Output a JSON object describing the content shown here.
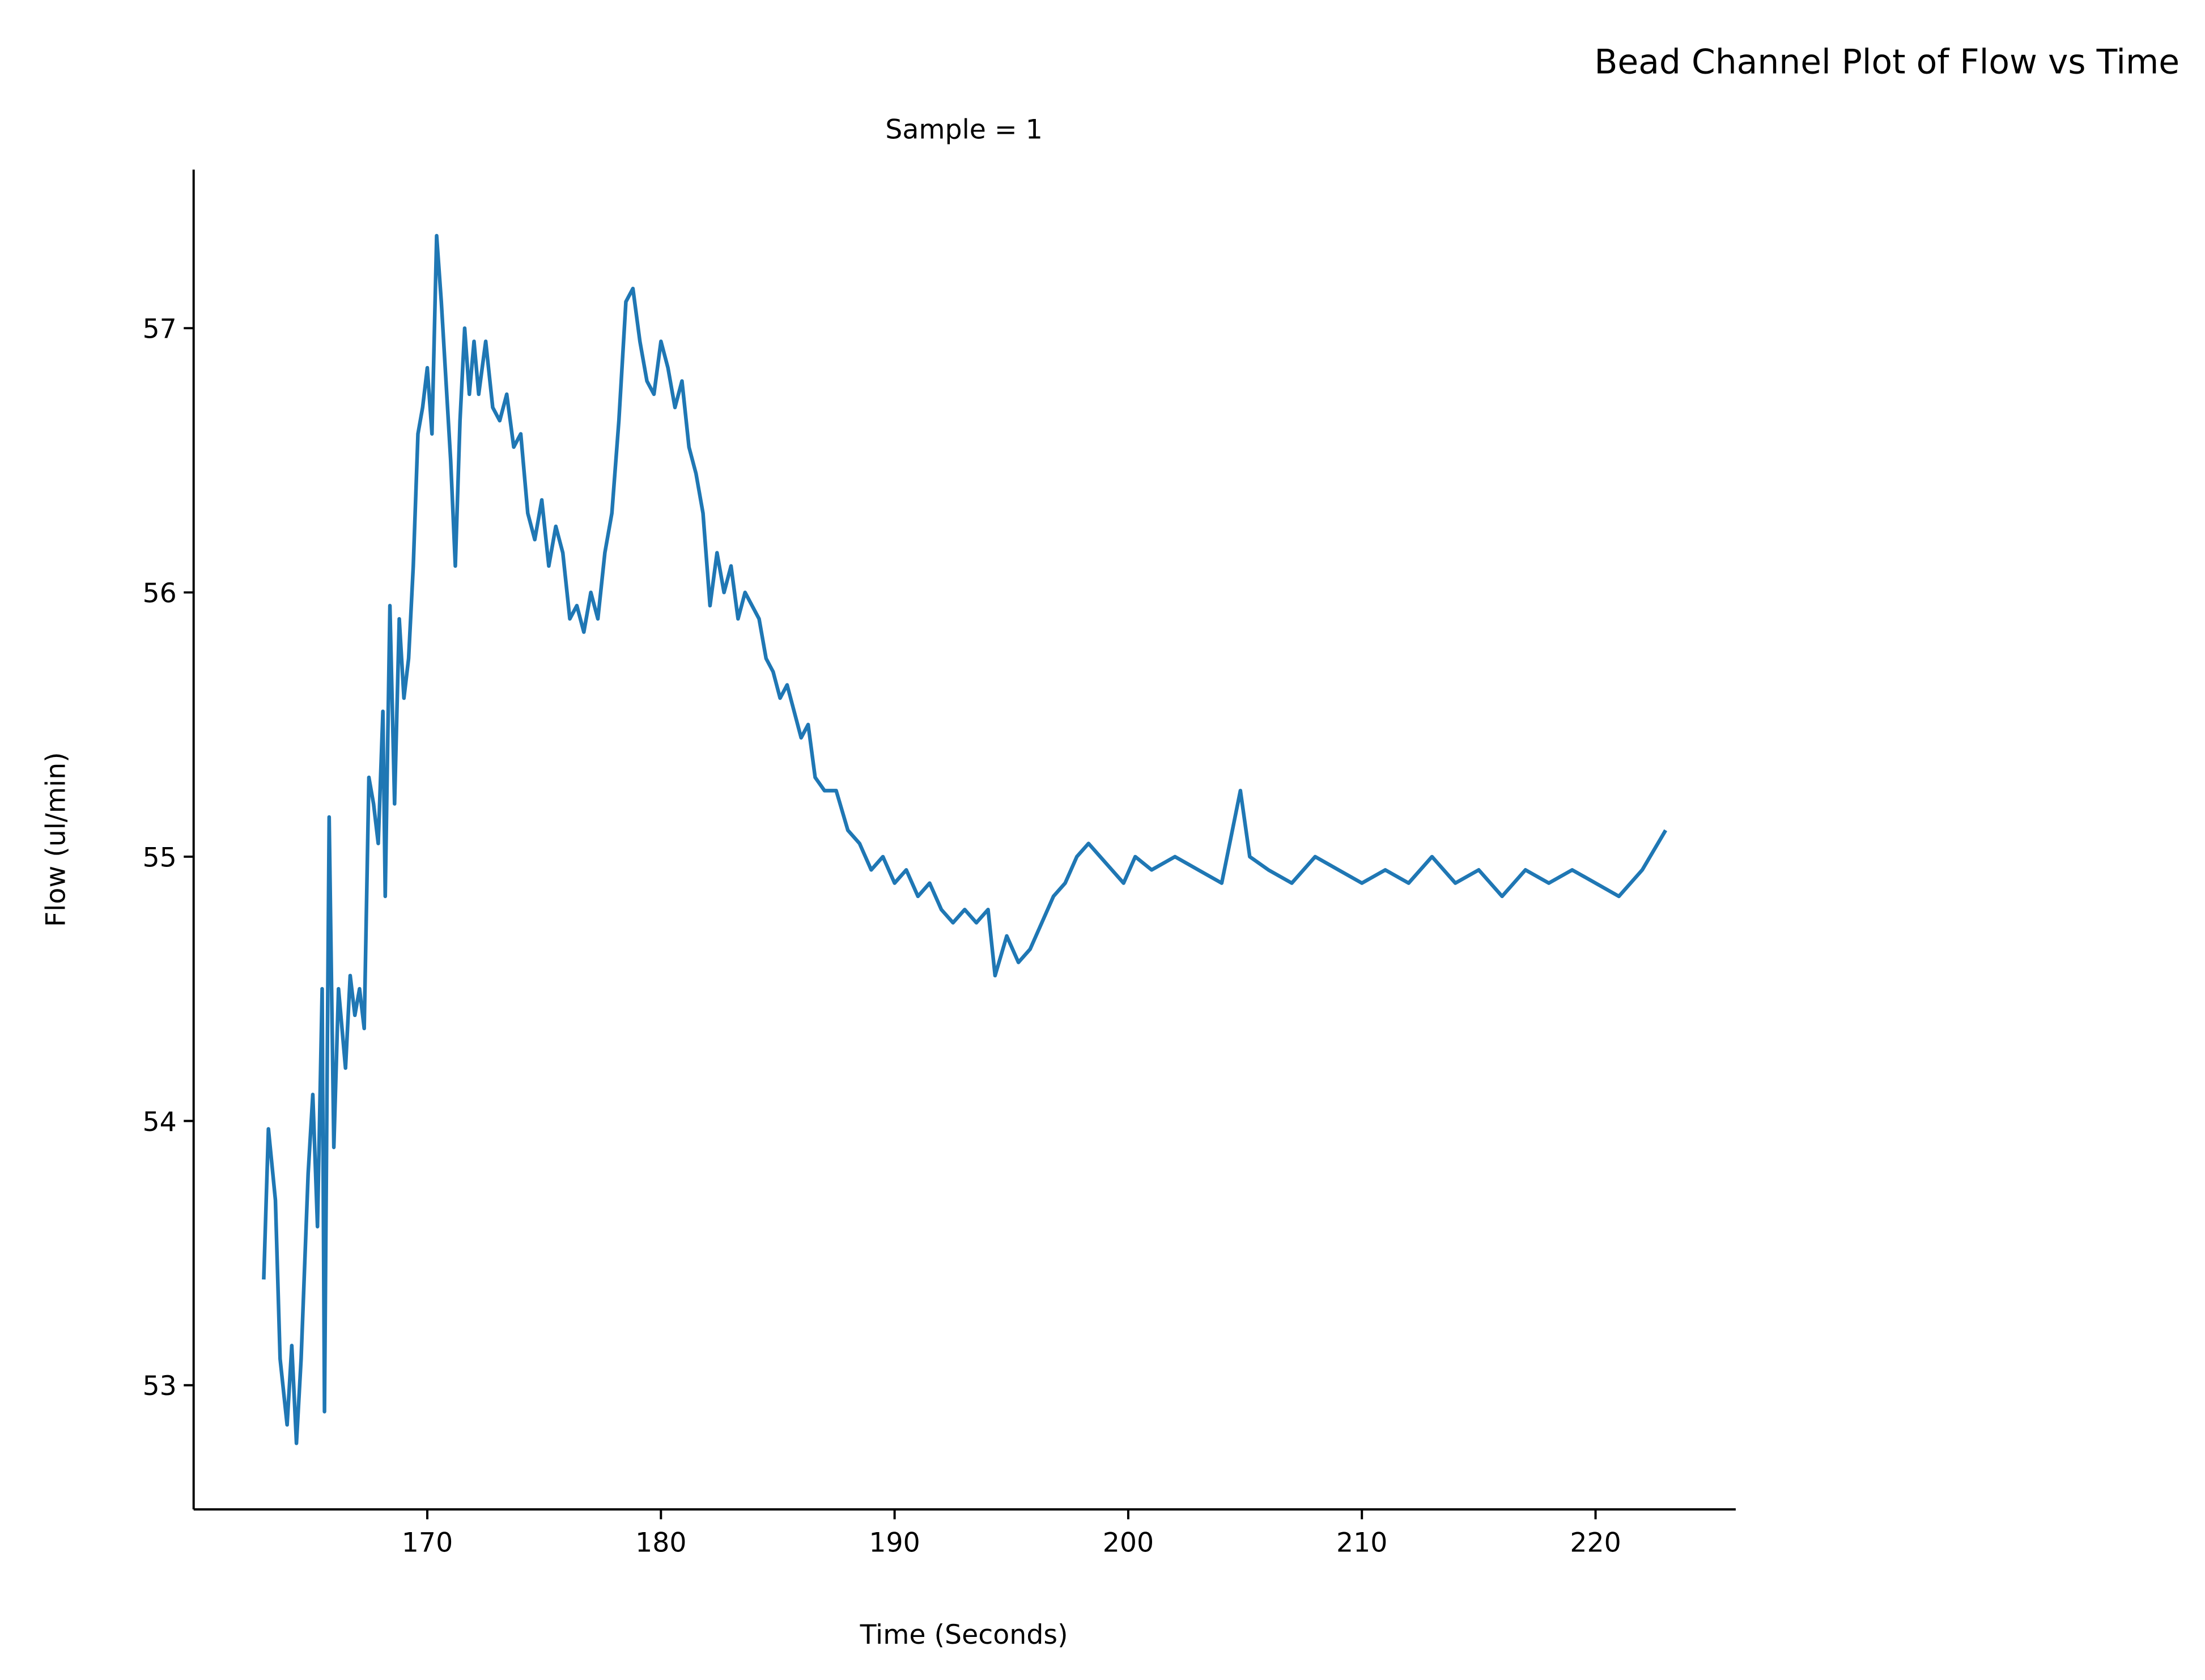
{
  "chart_data": {
    "type": "line",
    "title": "Bead Channel Plot of Flow vs Time",
    "subtitle": "Sample = 1",
    "x_label": "Time (Seconds)",
    "y_label": "Flow (ul/min)",
    "xlim": [
      160,
      226
    ],
    "xticks": [
      170,
      180,
      190,
      200,
      210,
      220
    ],
    "ylim": [
      52.53,
      57.6
    ],
    "yticks": [
      53,
      54,
      55,
      56,
      57
    ],
    "grid": false,
    "x": [
      163.0,
      163.2,
      163.5,
      163.7,
      164.0,
      164.2,
      164.4,
      164.6,
      164.9,
      165.1,
      165.3,
      165.5,
      165.6,
      165.8,
      166.0,
      166.2,
      166.5,
      166.7,
      166.9,
      167.1,
      167.3,
      167.5,
      167.7,
      167.9,
      168.1,
      168.2,
      168.4,
      168.6,
      168.8,
      169.0,
      169.2,
      169.4,
      169.6,
      169.8,
      170.0,
      170.2,
      170.4,
      170.6,
      170.8,
      171.0,
      171.2,
      171.4,
      171.6,
      171.8,
      172.0,
      172.2,
      172.5,
      172.8,
      173.1,
      173.4,
      173.7,
      174.0,
      174.3,
      174.6,
      174.9,
      175.2,
      175.5,
      175.8,
      176.1,
      176.4,
      176.7,
      177.0,
      177.3,
      177.6,
      177.9,
      178.2,
      178.5,
      178.8,
      179.1,
      179.4,
      179.7,
      180.0,
      180.3,
      180.6,
      180.9,
      181.2,
      181.5,
      181.8,
      182.1,
      182.4,
      182.7,
      183.0,
      183.3,
      183.6,
      183.9,
      184.2,
      184.5,
      184.8,
      185.1,
      185.4,
      185.7,
      186.0,
      186.3,
      186.6,
      187.0,
      187.5,
      188.0,
      188.5,
      189.0,
      189.5,
      190.0,
      190.5,
      191.0,
      191.5,
      192.0,
      192.5,
      193.0,
      193.5,
      194.0,
      194.3,
      194.8,
      195.3,
      195.8,
      196.3,
      196.8,
      197.3,
      197.8,
      198.3,
      198.8,
      199.3,
      199.8,
      200.3,
      201,
      202,
      203,
      204,
      204.8,
      205.2,
      206,
      207,
      208,
      209,
      210,
      211,
      212,
      213,
      214,
      215,
      216,
      217,
      218,
      219,
      220,
      221,
      222,
      223
    ],
    "series": [
      {
        "name": "Flow",
        "color": "#1f77b4",
        "values": [
          53.4,
          53.97,
          53.7,
          53.1,
          52.85,
          53.15,
          52.78,
          53.1,
          53.8,
          54.1,
          53.6,
          54.5,
          52.9,
          55.15,
          53.9,
          54.5,
          54.2,
          54.55,
          54.4,
          54.5,
          54.35,
          55.3,
          55.2,
          55.05,
          55.55,
          54.85,
          55.95,
          55.2,
          55.9,
          55.6,
          55.75,
          56.1,
          56.6,
          56.7,
          56.85,
          56.6,
          57.35,
          57.1,
          56.8,
          56.5,
          56.1,
          56.65,
          57.0,
          56.75,
          56.95,
          56.75,
          56.95,
          56.7,
          56.65,
          56.75,
          56.55,
          56.6,
          56.3,
          56.2,
          56.35,
          56.1,
          56.25,
          56.15,
          55.9,
          55.95,
          55.85,
          56.0,
          55.9,
          56.15,
          56.3,
          56.65,
          57.1,
          57.15,
          56.95,
          56.8,
          56.75,
          56.95,
          56.85,
          56.7,
          56.8,
          56.55,
          56.45,
          56.3,
          55.95,
          56.15,
          56.0,
          56.1,
          55.9,
          56.0,
          55.95,
          55.9,
          55.75,
          55.7,
          55.6,
          55.65,
          55.55,
          55.45,
          55.5,
          55.3,
          55.25,
          55.25,
          55.1,
          55.05,
          54.95,
          55.0,
          54.9,
          54.95,
          54.85,
          54.9,
          54.8,
          54.75,
          54.8,
          54.75,
          54.8,
          54.55,
          54.7,
          54.6,
          54.65,
          54.75,
          54.85,
          54.9,
          55.0,
          55.05,
          55.0,
          54.95,
          54.9,
          55.0,
          54.95,
          55.0,
          54.95,
          54.9,
          55.25,
          55.0,
          54.95,
          54.9,
          55.0,
          54.95,
          54.9,
          54.95,
          54.9,
          55.0,
          54.9,
          54.95,
          54.85,
          54.95,
          54.9,
          54.95,
          54.9,
          54.85,
          54.95,
          55.1
        ]
      }
    ]
  }
}
